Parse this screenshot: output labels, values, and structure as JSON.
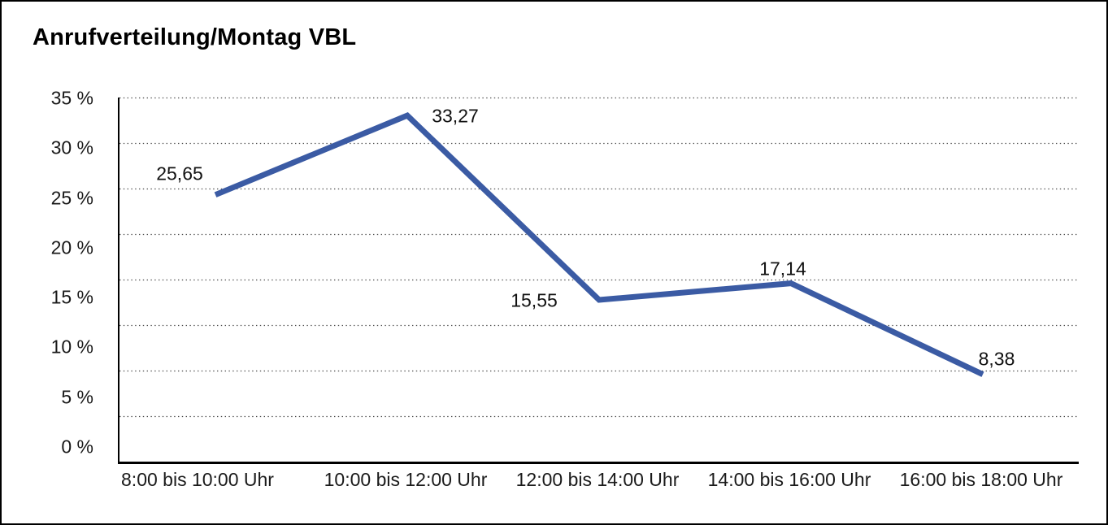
{
  "title": "Anrufverteilung/Montag VBL",
  "chart_data": {
    "type": "line",
    "title": "Anrufverteilung/Montag VBL",
    "categories": [
      "8:00 bis 10:00 Uhr",
      "10:00 bis 12:00 Uhr",
      "12:00 bis 14:00 Uhr",
      "14:00 bis 16:00 Uhr",
      "16:00 bis 18:00 Uhr"
    ],
    "values": [
      25.65,
      33.27,
      15.55,
      17.14,
      8.38
    ],
    "data_labels": [
      "25,65",
      "33,27",
      "15,55",
      "17,14",
      "8,38"
    ],
    "y_tick_labels": [
      "35 %",
      "30 %",
      "25 %",
      "20 %",
      "15 %",
      "10 %",
      "5 %",
      "0 %"
    ],
    "ylim": [
      0,
      35
    ],
    "xlabel": "",
    "ylabel": "",
    "legend": "none",
    "grid": "horizontal-dotted",
    "gridline_count": 8,
    "line_color": "#3B5BA4",
    "axis_color": "#000000",
    "grid_color": "#4d4d4d"
  }
}
